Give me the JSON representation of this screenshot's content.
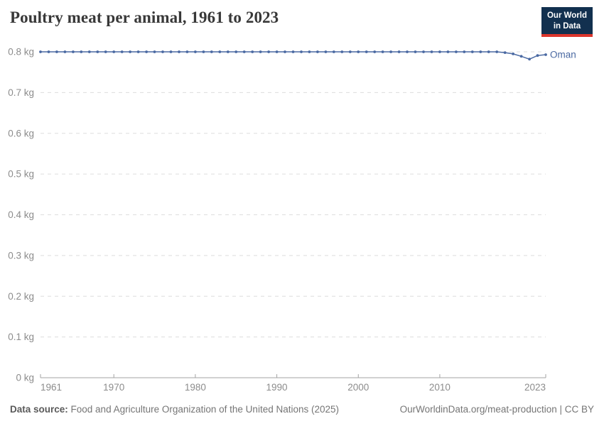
{
  "header": {
    "title": "Poultry meat per animal, 1961 to 2023",
    "logo": {
      "line1": "Our World",
      "line2": "in Data"
    }
  },
  "footer": {
    "source_label": "Data source:",
    "source_text": " Food and Agriculture Organization of the United Nations (2025)",
    "credit": "OurWorldinData.org/meat-production | CC BY"
  },
  "colors": {
    "line": "#4a69a2",
    "entity_label": "#4a69a2",
    "grid": "#dddddd",
    "axis": "#a3a3a3",
    "tick_text": "#8c8c8c",
    "title_text": "#383838",
    "footer_text": "#757575",
    "logo_bg": "#12304f",
    "logo_red": "#dc352c"
  },
  "chart_data": {
    "type": "line",
    "title": "Poultry meat per animal, 1961 to 2023",
    "xlabel": "",
    "ylabel": "",
    "unit": "kg",
    "grid": true,
    "legend_position": "end-of-line",
    "series": [
      {
        "name": "Oman",
        "x_start": 1961,
        "x_end": 2023,
        "x_step": 1,
        "values": [
          0.8,
          0.8,
          0.8,
          0.8,
          0.8,
          0.8,
          0.8,
          0.8,
          0.8,
          0.8,
          0.8,
          0.8,
          0.8,
          0.8,
          0.8,
          0.8,
          0.8,
          0.8,
          0.8,
          0.8,
          0.8,
          0.8,
          0.8,
          0.8,
          0.8,
          0.8,
          0.8,
          0.8,
          0.8,
          0.8,
          0.8,
          0.8,
          0.8,
          0.8,
          0.8,
          0.8,
          0.8,
          0.8,
          0.8,
          0.8,
          0.8,
          0.8,
          0.8,
          0.8,
          0.8,
          0.8,
          0.8,
          0.8,
          0.8,
          0.8,
          0.8,
          0.8,
          0.8,
          0.8,
          0.8,
          0.8,
          0.8,
          0.798,
          0.795,
          0.789,
          0.782,
          0.791,
          0.793
        ]
      }
    ],
    "xlim": [
      1961,
      2023
    ],
    "ylim": [
      0,
      0.8
    ],
    "y_ticks": [
      {
        "value": 0,
        "label": "0 kg"
      },
      {
        "value": 0.1,
        "label": "0.1 kg"
      },
      {
        "value": 0.2,
        "label": "0.2 kg"
      },
      {
        "value": 0.3,
        "label": "0.3 kg"
      },
      {
        "value": 0.4,
        "label": "0.4 kg"
      },
      {
        "value": 0.5,
        "label": "0.5 kg"
      },
      {
        "value": 0.6,
        "label": "0.6 kg"
      },
      {
        "value": 0.7,
        "label": "0.7 kg"
      },
      {
        "value": 0.8,
        "label": "0.8 kg"
      }
    ],
    "x_ticks": [
      {
        "year": 1961,
        "label": "1961",
        "anchor": "start"
      },
      {
        "year": 1970,
        "label": "1970",
        "anchor": "middle"
      },
      {
        "year": 1980,
        "label": "1980",
        "anchor": "middle"
      },
      {
        "year": 1990,
        "label": "1990",
        "anchor": "middle"
      },
      {
        "year": 2000,
        "label": "2000",
        "anchor": "middle"
      },
      {
        "year": 2010,
        "label": "2010",
        "anchor": "middle"
      },
      {
        "year": 2023,
        "label": "2023",
        "anchor": "end"
      }
    ]
  }
}
